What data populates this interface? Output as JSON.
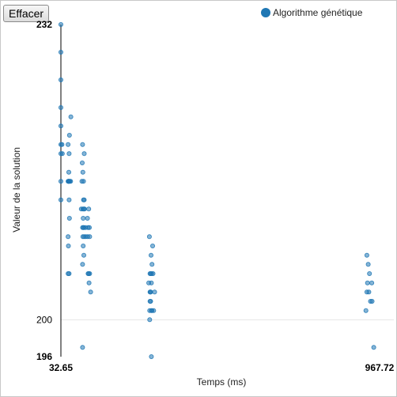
{
  "toolbar": {
    "clear_label": "Effacer"
  },
  "chart_data": {
    "type": "scatter",
    "xlabel": "Temps (ms)",
    "ylabel": "Valeur de la solution",
    "xlim": [
      32.65,
      967.72
    ],
    "ylim": [
      196,
      232
    ],
    "x_ticks": [
      "32.65",
      "967.72"
    ],
    "y_ticks": [
      {
        "label": "232",
        "value": 232,
        "bold": true
      },
      {
        "label": "200",
        "value": 200,
        "bold": false
      },
      {
        "label": "196",
        "value": 196,
        "bold": true
      }
    ],
    "gridlines_y": [
      200
    ],
    "legend_position": "top-right",
    "series": [
      {
        "name": "Algorithme génétique",
        "color": "#1f77b4",
        "points": [
          [
            32.65,
            232
          ],
          [
            32.65,
            229
          ],
          [
            32.65,
            226
          ],
          [
            32.65,
            223
          ],
          [
            32.65,
            221
          ],
          [
            32.65,
            219
          ],
          [
            32.65,
            218
          ],
          [
            32.65,
            215
          ],
          [
            32.65,
            213
          ],
          [
            35.9,
            219
          ],
          [
            36.8,
            218
          ],
          [
            62.0,
            222
          ],
          [
            57.6,
            220
          ],
          [
            53.8,
            219
          ],
          [
            56.7,
            218
          ],
          [
            55.8,
            216
          ],
          [
            55.8,
            215
          ],
          [
            55.8,
            215
          ],
          [
            58.6,
            215
          ],
          [
            53.8,
            215
          ],
          [
            61.1,
            215
          ],
          [
            54.8,
            215
          ],
          [
            56.7,
            215
          ],
          [
            56.7,
            213
          ],
          [
            57.6,
            211
          ],
          [
            53.8,
            209
          ],
          [
            54.8,
            208
          ],
          [
            56.7,
            205
          ],
          [
            53.8,
            205
          ],
          [
            101.0,
            218
          ],
          [
            96.2,
            219
          ],
          [
            95.3,
            217
          ],
          [
            97.2,
            216
          ],
          [
            94.3,
            215
          ],
          [
            99.1,
            215
          ],
          [
            101.0,
            213
          ],
          [
            99.1,
            213
          ],
          [
            100.0,
            212
          ],
          [
            97.2,
            212
          ],
          [
            102.0,
            212
          ],
          [
            92.4,
            212
          ],
          [
            98.1,
            211
          ],
          [
            99.1,
            210
          ],
          [
            100.0,
            210
          ],
          [
            101.0,
            209
          ],
          [
            96.2,
            210
          ],
          [
            104.8,
            210
          ],
          [
            105.8,
            209
          ],
          [
            98.1,
            208
          ],
          [
            97.2,
            209
          ],
          [
            100.0,
            207
          ],
          [
            96.2,
            206
          ],
          [
            96.2,
            197
          ],
          [
            110.5,
            211
          ],
          [
            114.3,
            212
          ],
          [
            112.4,
            210
          ],
          [
            116.2,
            210
          ],
          [
            111.4,
            209
          ],
          [
            117.1,
            209
          ],
          [
            112.4,
            205
          ],
          [
            114.3,
            205
          ],
          [
            117.1,
            205
          ],
          [
            115.2,
            204
          ],
          [
            120.0,
            203
          ],
          [
            292.4,
            209
          ],
          [
            301.9,
            208
          ],
          [
            297.1,
            207
          ],
          [
            300.0,
            206
          ],
          [
            299.0,
            205
          ],
          [
            296.1,
            205
          ],
          [
            294.2,
            205
          ],
          [
            302.9,
            205
          ],
          [
            290.5,
            204
          ],
          [
            298.0,
            204
          ],
          [
            294.2,
            203
          ],
          [
            295.2,
            203
          ],
          [
            296.1,
            203
          ],
          [
            307.6,
            203
          ],
          [
            294.2,
            202
          ],
          [
            296.1,
            202
          ],
          [
            293.3,
            201
          ],
          [
            298.0,
            201
          ],
          [
            300.0,
            201
          ],
          [
            304.8,
            201
          ],
          [
            293.3,
            200
          ],
          [
            298.0,
            196
          ],
          [
            930.4,
            207
          ],
          [
            934.2,
            206
          ],
          [
            938.1,
            205
          ],
          [
            932.3,
            204
          ],
          [
            944.8,
            204
          ],
          [
            936.2,
            203
          ],
          [
            930.4,
            203
          ],
          [
            941.0,
            202
          ],
          [
            945.7,
            202
          ],
          [
            927.6,
            201
          ],
          [
            950.5,
            197
          ]
        ]
      }
    ]
  }
}
